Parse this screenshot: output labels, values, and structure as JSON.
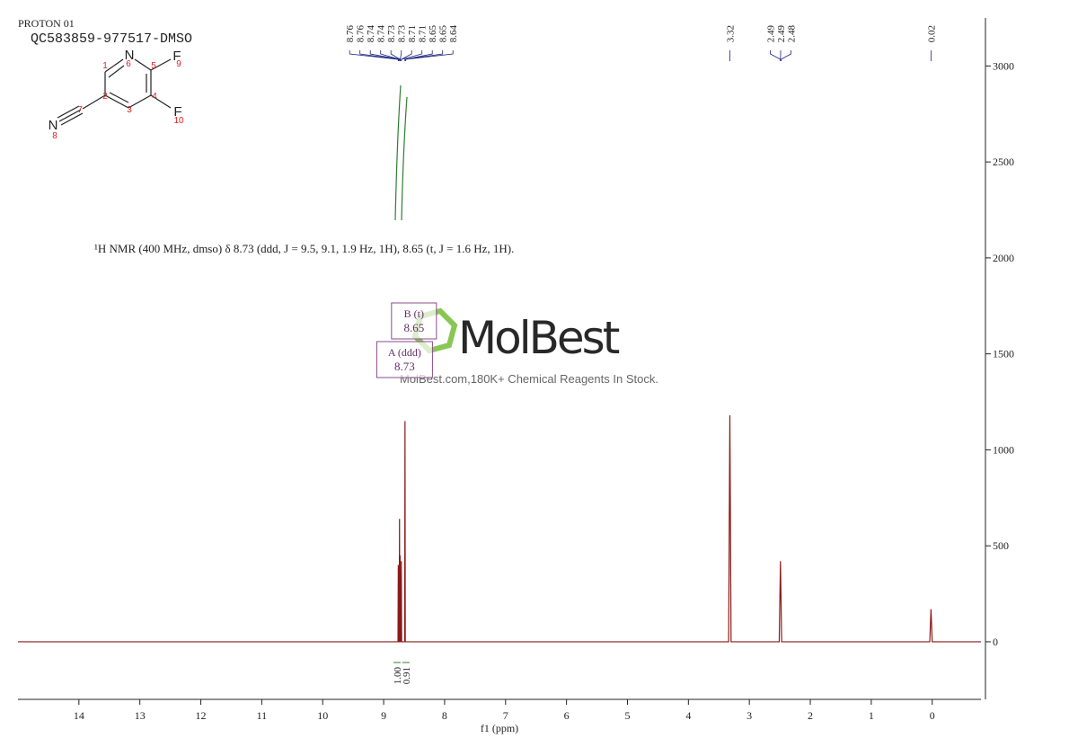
{
  "header": {
    "experiment": "PROTON 01",
    "sample": "QC583859-977517-DMSO"
  },
  "molecule": {
    "atoms": [
      "N",
      "F",
      "F",
      "N"
    ],
    "numbers": [
      1,
      2,
      3,
      4,
      5,
      6,
      7,
      8,
      9,
      10
    ]
  },
  "watermark": {
    "brand": "MolBest",
    "tagline": "MolBest.com,180K+ Chemical Reagents In Stock."
  },
  "chart_data": {
    "type": "line",
    "description": "¹H NMR (400 MHz, dmso) δ 8.73 (ddd, J = 9.5, 9.1, 1.9 Hz, 1H), 8.65 (t, J = 1.6 Hz, 1H).",
    "x_label": "f1 (ppm)",
    "x": [
      15,
      8.8,
      8.765,
      8.76,
      8.755,
      8.745,
      8.74,
      8.735,
      8.73,
      8.725,
      8.715,
      8.71,
      8.705,
      8.67,
      8.655,
      8.65,
      8.645,
      8.62,
      3.34,
      3.32,
      3.3,
      2.51,
      2.49,
      2.47,
      0.04,
      0.02,
      0,
      -0.8
    ],
    "series": [
      {
        "color": "#8b1a1a",
        "values": [
          0,
          0,
          0,
          400,
          0,
          0,
          640,
          0,
          450,
          0,
          0,
          420,
          0,
          0,
          0,
          1150,
          0,
          0,
          0,
          1180,
          0,
          0,
          420,
          0,
          0,
          170,
          0,
          0
        ]
      }
    ],
    "peak_labels": [
      8.76,
      8.76,
      8.74,
      8.74,
      8.73,
      8.73,
      8.71,
      8.71,
      8.65,
      8.65,
      8.64,
      3.32,
      2.49,
      2.49,
      2.48,
      0.02
    ],
    "multiplets": [
      {
        "label": "B (t)",
        "shift": 8.65
      },
      {
        "label": "A (ddd)",
        "shift": 8.73
      }
    ],
    "integrals": [
      {
        "value": 1,
        "label": "1.00"
      },
      0.91
    ],
    "xlim": [
      15,
      -0.8
    ],
    "ylim": [
      -300,
      3250
    ],
    "xticks": [
      14,
      13,
      12,
      11,
      10,
      9,
      8,
      7,
      6,
      5,
      4,
      3,
      2,
      1,
      0
    ],
    "yticks": [
      0,
      500,
      1000,
      1500,
      2000,
      2500,
      3000
    ]
  }
}
